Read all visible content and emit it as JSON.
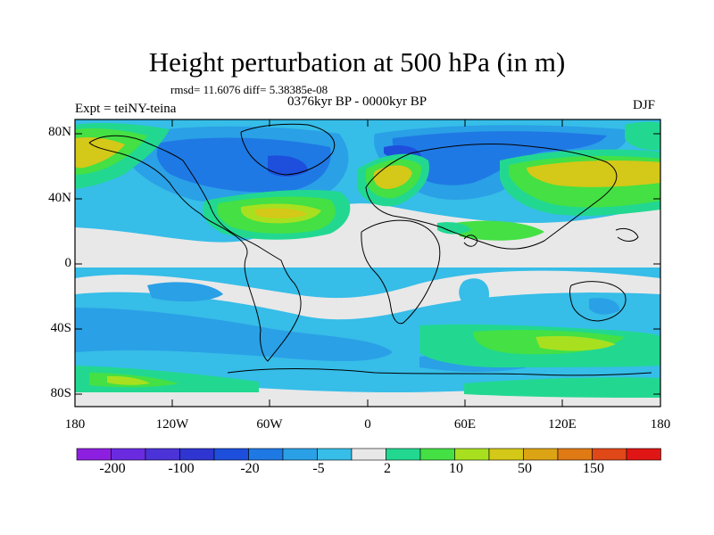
{
  "title": "Height perturbation at 500 hPa (in m)",
  "stats": "rmsd= 11.6076 diff= 5.38385e-08",
  "period": "0376kyr BP - 0000kyr BP",
  "experiment": "Expt = teiNY-teina",
  "season": "DJF",
  "axes": {
    "y_ticks": [
      "80N",
      "40N",
      "0",
      "40S",
      "80S"
    ],
    "x_ticks": [
      "180",
      "120W",
      "60W",
      "0",
      "60E",
      "120E",
      "180"
    ]
  },
  "colorbar": {
    "colors": [
      "#8d1fe0",
      "#6a2be0",
      "#4b33d8",
      "#2e35d0",
      "#1d4fdc",
      "#1f79e4",
      "#2aa0e6",
      "#36bde8",
      "#e8e8e8",
      "#22d890",
      "#44e044",
      "#a8e020",
      "#d4c818",
      "#dca414",
      "#e07a14",
      "#e04818",
      "#e01616"
    ],
    "labels": [
      "-200",
      "-100",
      "-20",
      "-5",
      "2",
      "10",
      "50",
      "150"
    ]
  },
  "palette": {
    "ocean": "#e8e8e8",
    "coast": "#000000",
    "c_m5": "#36bde8",
    "c_m20": "#2aa0e6",
    "c_m50": "#1f79e4",
    "c_m100": "#1d4fdc",
    "c_p2": "#22d890",
    "c_p10": "#44e044",
    "c_p30": "#a8e020",
    "c_p50": "#d4c818"
  }
}
